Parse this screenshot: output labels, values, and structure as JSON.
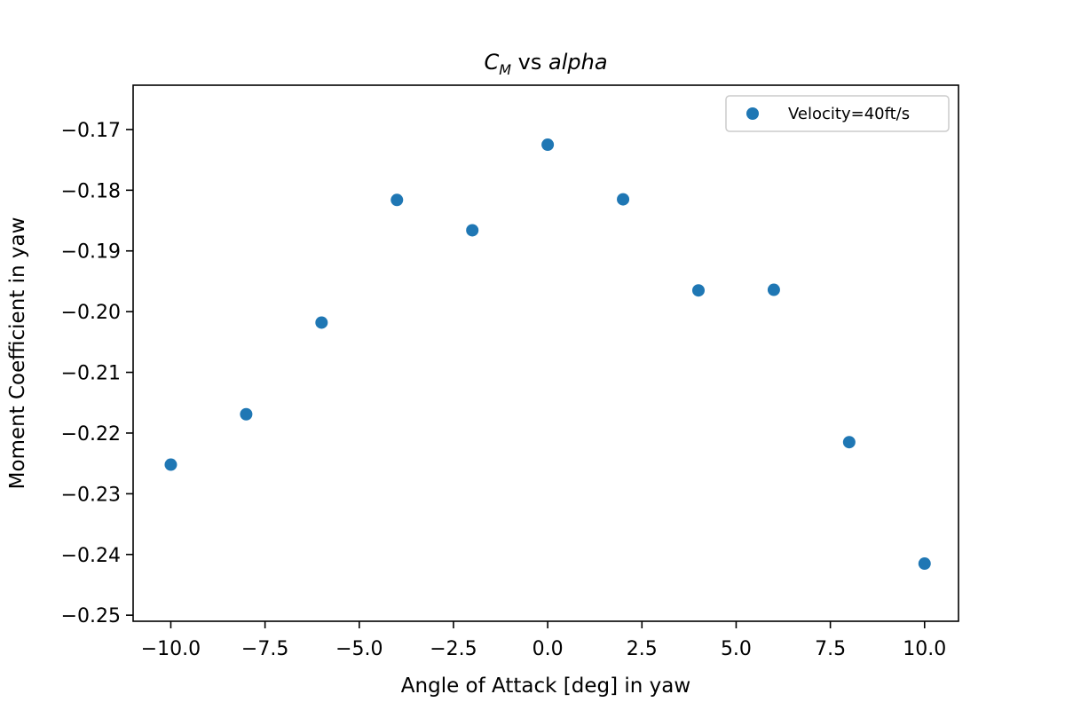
{
  "chart_data": {
    "type": "scatter",
    "title": {
      "symbol": "C",
      "subscript": "M",
      "middle": " vs ",
      "variable": "alpha"
    },
    "xlabel": "Angle of Attack [deg] in yaw",
    "ylabel": "Moment Coefficient in yaw",
    "xlim": [
      -11.0,
      10.9
    ],
    "ylim": [
      -0.251,
      -0.1627
    ],
    "xticks": [
      -10.0,
      -7.5,
      -5.0,
      -2.5,
      0.0,
      2.5,
      5.0,
      7.5,
      10.0
    ],
    "xtick_labels": [
      "−10.0",
      "−7.5",
      "−5.0",
      "−2.5",
      "0.0",
      "2.5",
      "5.0",
      "7.5",
      "10.0"
    ],
    "yticks": [
      -0.17,
      -0.18,
      -0.19,
      -0.2,
      -0.21,
      -0.22,
      -0.23,
      -0.24,
      -0.25
    ],
    "ytick_labels": [
      "−0.17",
      "−0.18",
      "−0.19",
      "−0.20",
      "−0.21",
      "−0.22",
      "−0.23",
      "−0.24",
      "−0.25"
    ],
    "grid": false,
    "legend_position": "top-right",
    "series": [
      {
        "name": "Velocity=40ft/s",
        "color": "#1f77b4",
        "x": [
          -10.0,
          -8.0,
          -6.0,
          -4.0,
          -2.0,
          0.0,
          2.0,
          4.0,
          6.0,
          8.0,
          10.0
        ],
        "y": [
          -0.2252,
          -0.2169,
          -0.2018,
          -0.1816,
          -0.1866,
          -0.1725,
          -0.1815,
          -0.1965,
          -0.1964,
          -0.2215,
          -0.2415
        ]
      }
    ]
  }
}
